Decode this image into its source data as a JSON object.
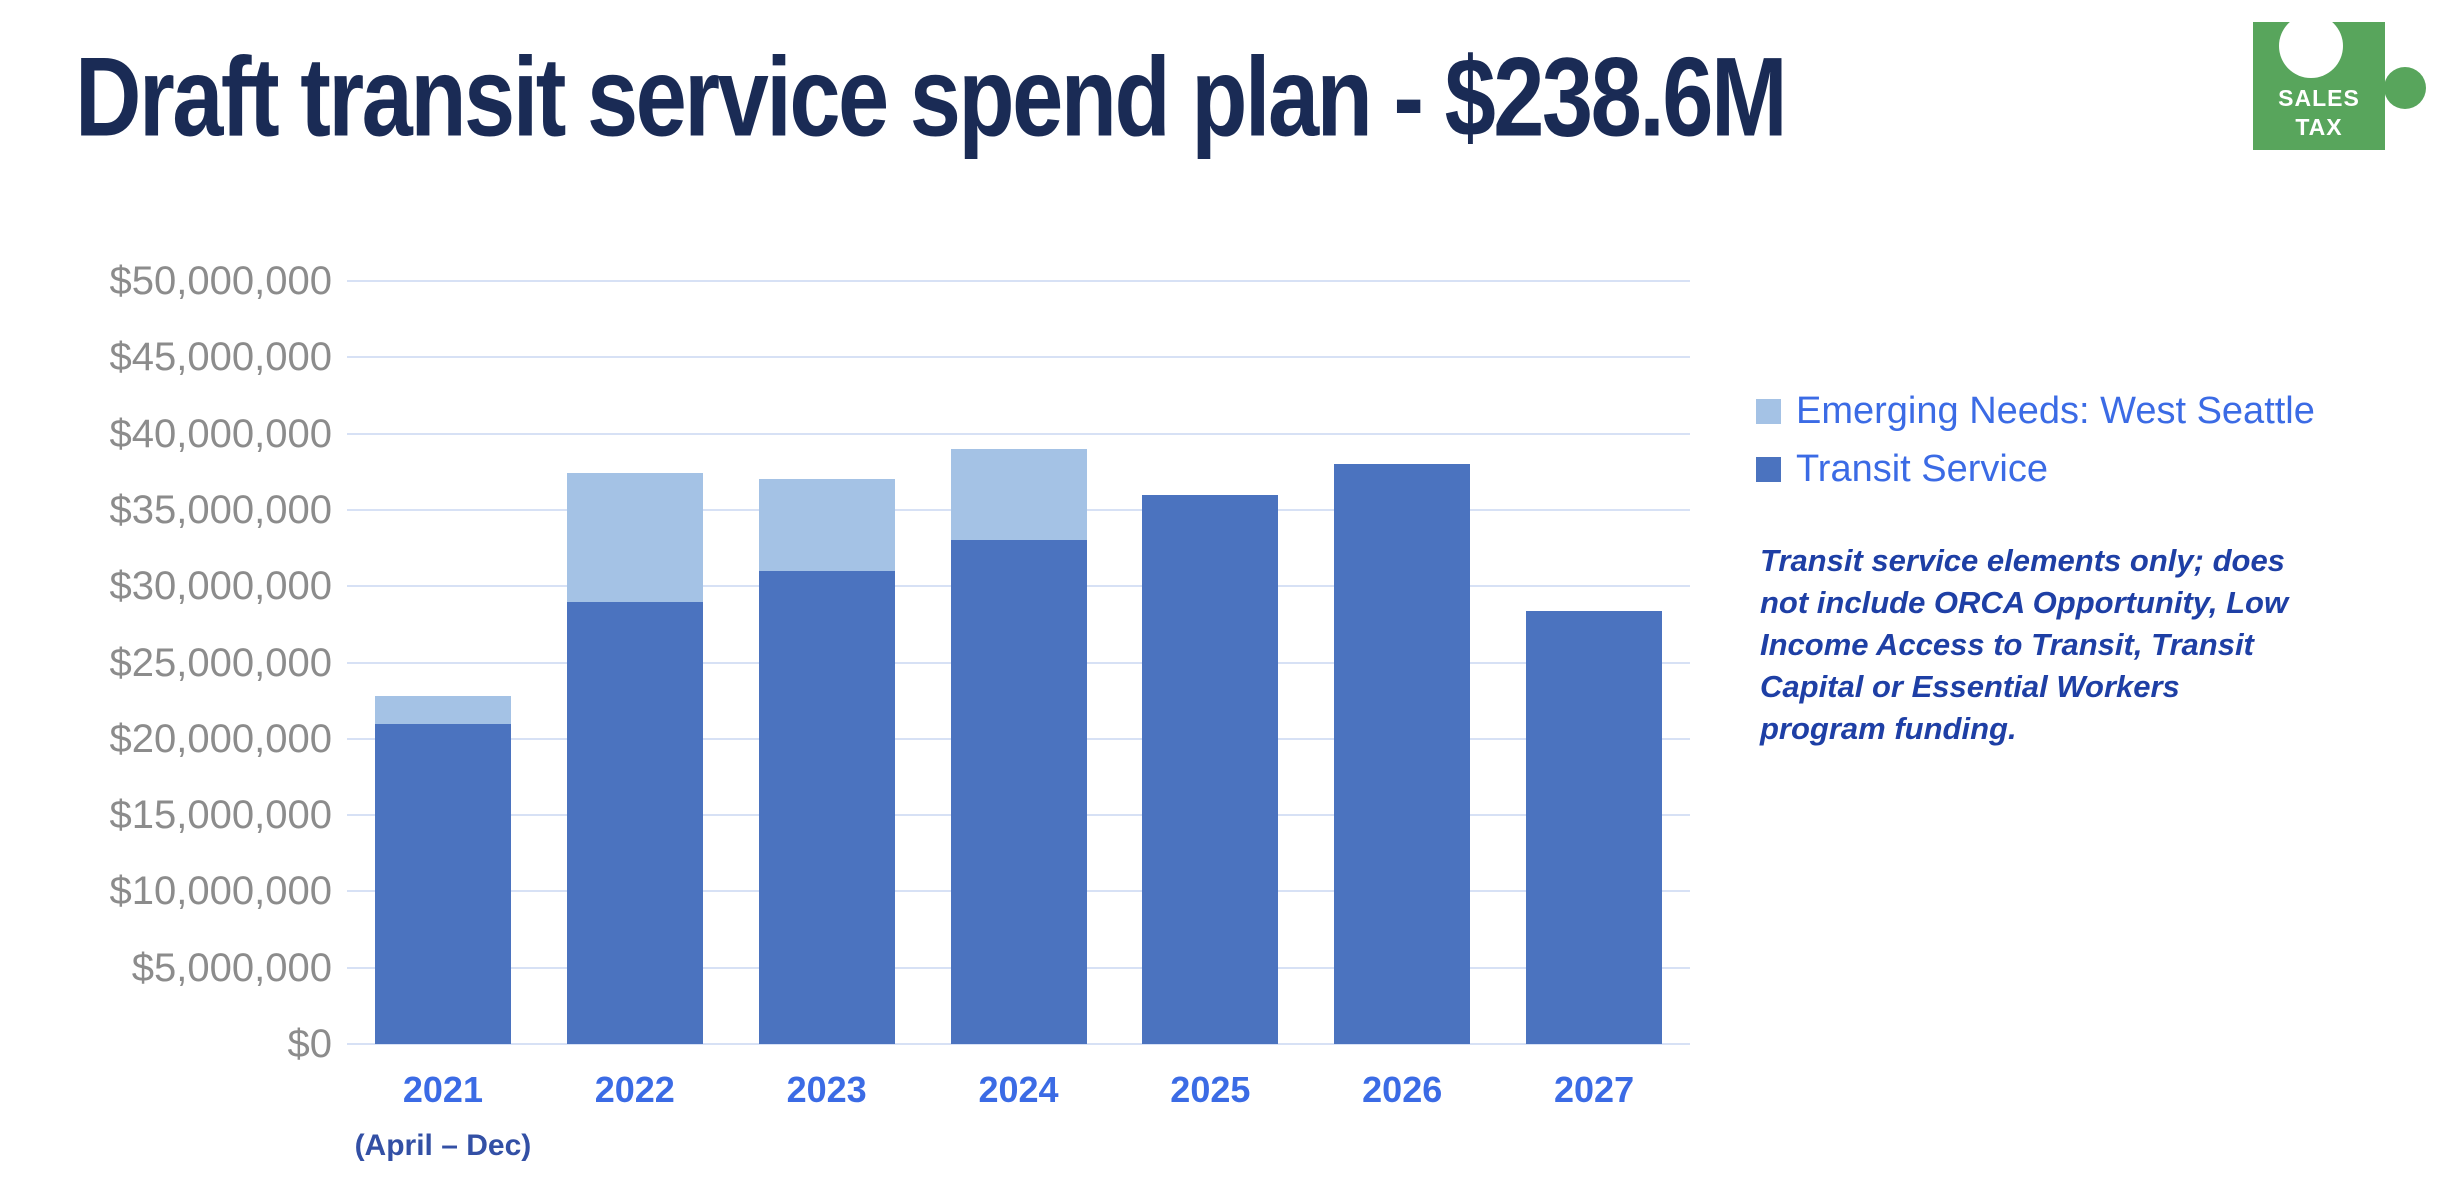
{
  "title": "Draft transit service spend plan - $238.6M",
  "badge": {
    "line1": "SALES",
    "line2": "TAX",
    "color": "#58A55C"
  },
  "colors": {
    "title_text": "#1A2B55",
    "gridline": "#D7E1F5",
    "y_axis_labels": "#8C8C8C",
    "year_labels": "#3B6BE5",
    "year_sublabel": "#3350A5",
    "legend_text": "#3B6BE5",
    "note_text": "#1E3FA5",
    "badge_green": "#58A55C",
    "badge_text": "#FFFFFF"
  },
  "chart_data": {
    "type": "bar",
    "stacked": true,
    "title": "Draft transit service spend plan - $238.6M",
    "categories": [
      "2021",
      "2022",
      "2023",
      "2024",
      "2025",
      "2026",
      "2027"
    ],
    "category_sublabels": [
      "(April – Dec)",
      "",
      "",
      "",
      "",
      "",
      ""
    ],
    "series": [
      {
        "name": "Transit Service",
        "color": "#4B73BF",
        "values": [
          21000000,
          29000000,
          31000000,
          33000000,
          36000000,
          38000000,
          28400000
        ]
      },
      {
        "name": "Emerging Needs: West Seattle",
        "color": "#A4C2E5",
        "values": [
          1800000,
          8400000,
          6000000,
          6000000,
          0,
          0,
          0
        ]
      }
    ],
    "legend": [
      "Emerging Needs: West Seattle",
      "Transit Service"
    ],
    "legend_position": "right",
    "grid": "horizontal",
    "xlabel": "",
    "ylabel": "",
    "ylim": [
      0,
      50000000
    ],
    "ytick_step": 5000000,
    "yticks": [
      {
        "value": 0,
        "label": "$0"
      },
      {
        "value": 5000000,
        "label": "$5,000,000"
      },
      {
        "value": 10000000,
        "label": "$10,000,000"
      },
      {
        "value": 15000000,
        "label": "$15,000,000"
      },
      {
        "value": 20000000,
        "label": "$20,000,000"
      },
      {
        "value": 25000000,
        "label": "$25,000,000"
      },
      {
        "value": 30000000,
        "label": "$30,000,000"
      },
      {
        "value": 35000000,
        "label": "$35,000,000"
      },
      {
        "value": 40000000,
        "label": "$40,000,000"
      },
      {
        "value": 45000000,
        "label": "$45,000,000"
      },
      {
        "value": 50000000,
        "label": "$50,000,000"
      }
    ],
    "annotation": "Transit service elements only; does not include ORCA Opportunity, Low Income Access to Transit, Transit Capital or Essential Workers program funding."
  }
}
